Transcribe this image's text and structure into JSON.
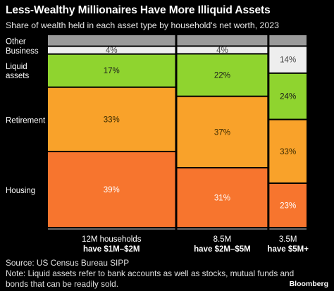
{
  "chart_data": {
    "type": "marimekko",
    "title": "Less-Wealthy Millionaires Have More Illiquid Assets",
    "subtitle": "Share of wealth held in each asset type by household's net worth, 2023",
    "categories": [
      "Other",
      "Business",
      "Liquid assets",
      "Retirement",
      "Housing"
    ],
    "columns": [
      {
        "households": "12M households",
        "households_value": 12,
        "bracket": "have $1M–$2M",
        "values": [
          6,
          4,
          17,
          33,
          39
        ],
        "labels": [
          "",
          "4%",
          "17%",
          "33%",
          "39%"
        ]
      },
      {
        "households": "8.5M",
        "households_value": 8.5,
        "bracket": "have $2M–$5M",
        "values": [
          6,
          4,
          22,
          37,
          31
        ],
        "labels": [
          "",
          "4%",
          "22%",
          "37%",
          "31%"
        ]
      },
      {
        "households": "3.5M",
        "households_value": 3.5,
        "bracket": "have $5M+",
        "values": [
          6,
          14,
          24,
          33,
          23
        ],
        "labels": [
          "",
          "14%",
          "24%",
          "33%",
          "23%"
        ]
      }
    ],
    "colors": [
      "#9a9a9a",
      "#eeeeee",
      "#8fd42f",
      "#f9a22a",
      "#f7752e"
    ],
    "label_colors": [
      "#000000",
      "#444444",
      "#1a1a1a",
      "#3a2a00",
      "#ffffff"
    ],
    "ylim": [
      0,
      100
    ]
  },
  "footer": {
    "source": "Source: US Census Bureau SIPP",
    "note": "Note: Liquid assets refer to bank accounts as well as stocks, mutual funds and bonds that can be readily sold.",
    "brand": "Bloomberg"
  }
}
